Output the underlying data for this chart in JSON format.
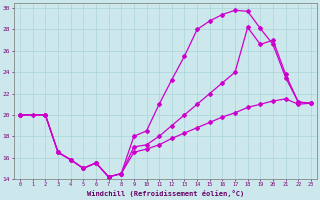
{
  "xlabel": "Windchill (Refroidissement éolien,°C)",
  "bg_color": "#cce8ec",
  "line_color": "#cc00cc",
  "grid_color": "#aad4d8",
  "xmin": -0.5,
  "xmax": 23.5,
  "ymin": 14,
  "ymax": 30.5,
  "yticks": [
    14,
    16,
    18,
    20,
    22,
    24,
    26,
    28,
    30
  ],
  "curve1_x": [
    0,
    1,
    2,
    3,
    4,
    5,
    6,
    7,
    8,
    9,
    10,
    11,
    12,
    13,
    14,
    15,
    16,
    17,
    18,
    19,
    20,
    21,
    22,
    23
  ],
  "curve1_y": [
    20,
    20,
    20,
    16.5,
    15.8,
    15.0,
    15.5,
    14.2,
    14.5,
    18.0,
    18.5,
    21.0,
    23.3,
    25.5,
    28.0,
    28.8,
    29.4,
    29.8,
    29.7,
    28.1,
    26.6,
    23.5,
    21.2,
    21.1
  ],
  "curve2_x": [
    0,
    2,
    3,
    4,
    5,
    6,
    7,
    8,
    9,
    10,
    11,
    12,
    13,
    14,
    15,
    16,
    17,
    18,
    19,
    20,
    21,
    22,
    23
  ],
  "curve2_y": [
    20,
    20,
    16.5,
    15.8,
    15.0,
    15.5,
    14.2,
    14.5,
    17.0,
    17.2,
    18.0,
    19.0,
    20.0,
    21.0,
    22.0,
    23.0,
    24.0,
    28.2,
    26.6,
    27.0,
    23.8,
    21.2,
    21.1
  ],
  "curve3_x": [
    0,
    2,
    3,
    4,
    5,
    6,
    7,
    8,
    9,
    10,
    11,
    12,
    13,
    14,
    15,
    16,
    17,
    18,
    19,
    20,
    21,
    22,
    23
  ],
  "curve3_y": [
    20,
    20,
    16.5,
    15.8,
    15.0,
    15.5,
    14.2,
    14.5,
    16.5,
    16.8,
    17.2,
    17.8,
    18.3,
    18.8,
    19.3,
    19.8,
    20.2,
    20.7,
    21.0,
    21.3,
    21.5,
    21.0,
    21.1
  ]
}
